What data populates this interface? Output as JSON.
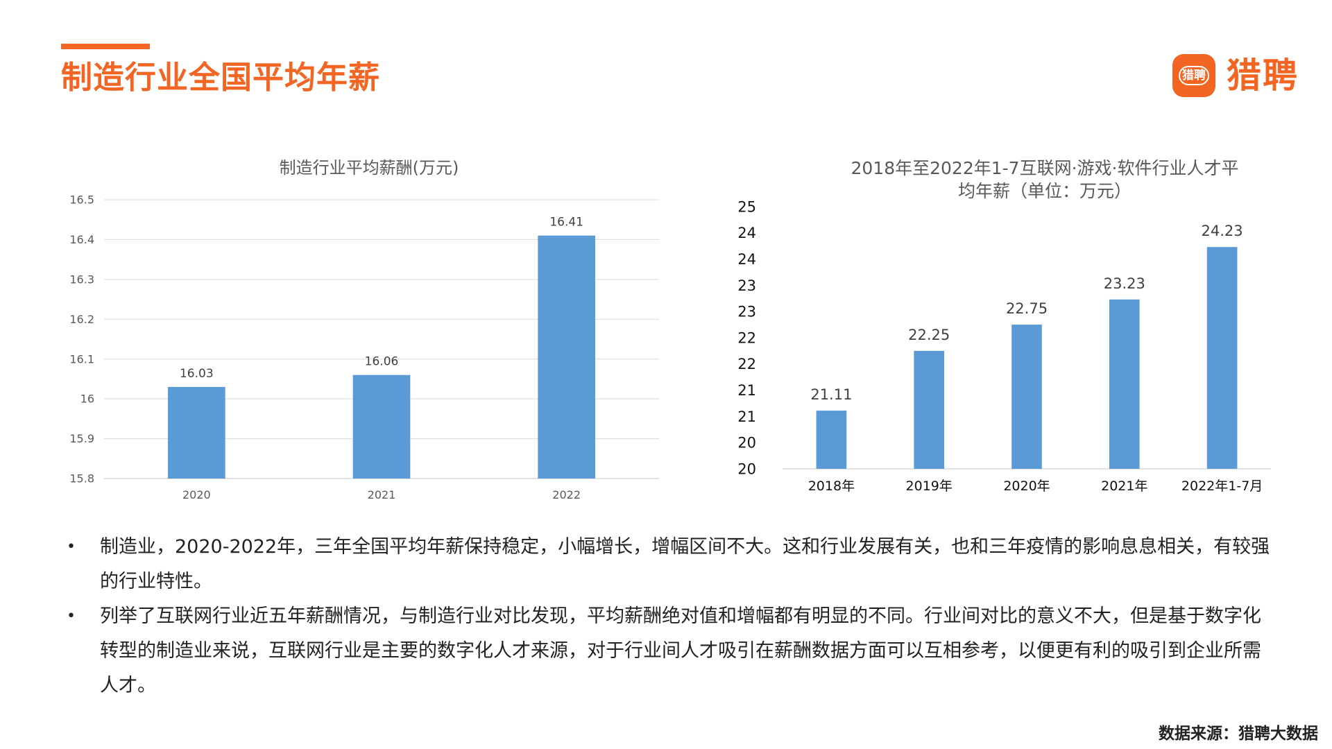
{
  "colors": {
    "accent": "#F26522",
    "bar": "#5B9BD5",
    "grid": "#D9D9D9",
    "axis_text": "#595959"
  },
  "page": {
    "title": "制造行业全国平均年薪"
  },
  "logo": {
    "badge_text": "猎聘",
    "text": "猎聘"
  },
  "chart_data": [
    {
      "type": "bar",
      "title": "制造行业平均薪酬(万元)",
      "categories": [
        "2020",
        "2021",
        "2022"
      ],
      "values": [
        16.03,
        16.06,
        16.41
      ],
      "data_labels": [
        "16.03",
        "16.06",
        "16.41"
      ],
      "ylim": [
        15.8,
        16.5
      ],
      "yticks": [
        "15.8",
        "15.9",
        "16",
        "16.1",
        "16.2",
        "16.3",
        "16.4",
        "16.5"
      ],
      "grid": true,
      "legend": "none"
    },
    {
      "type": "bar",
      "title": "2018年至2022年1-7互联网·游戏·软件行业人才平均年薪（单位：万元）",
      "title_lines": [
        "2018年至2022年1-7互联网·游戏·软件行业人才平",
        "均年薪（单位：万元）"
      ],
      "categories": [
        "2018年",
        "2019年",
        "2020年",
        "2021年",
        "2022年1-7月"
      ],
      "values": [
        21.11,
        22.25,
        22.75,
        23.23,
        24.23
      ],
      "data_labels": [
        "21.11",
        "22.25",
        "22.75",
        "23.23",
        "24.23"
      ],
      "ylim": [
        20,
        25
      ],
      "yticks": [
        "20",
        "20",
        "21",
        "21",
        "22",
        "22",
        "23",
        "23",
        "24",
        "24",
        "25"
      ],
      "grid": false,
      "legend": "none"
    }
  ],
  "bullets": [
    "制造业，2020-2022年，三年全国平均年薪保持稳定，小幅增长，增幅区间不大。这和行业发展有关，也和三年疫情的影响息息相关，有较强的行业特性。",
    "列举了互联网行业近五年薪酬情况，与制造行业对比发现，平均薪酬绝对值和增幅都有明显的不同。行业间对比的意义不大，但是基于数字化转型的制造业来说，互联网行业是主要的数字化人才来源，对于行业间人才吸引在薪酬数据方面可以互相参考，以便更有利的吸引到企业所需人才。"
  ],
  "bullet_symbol": "•",
  "source": "数据来源：猎聘大数据"
}
